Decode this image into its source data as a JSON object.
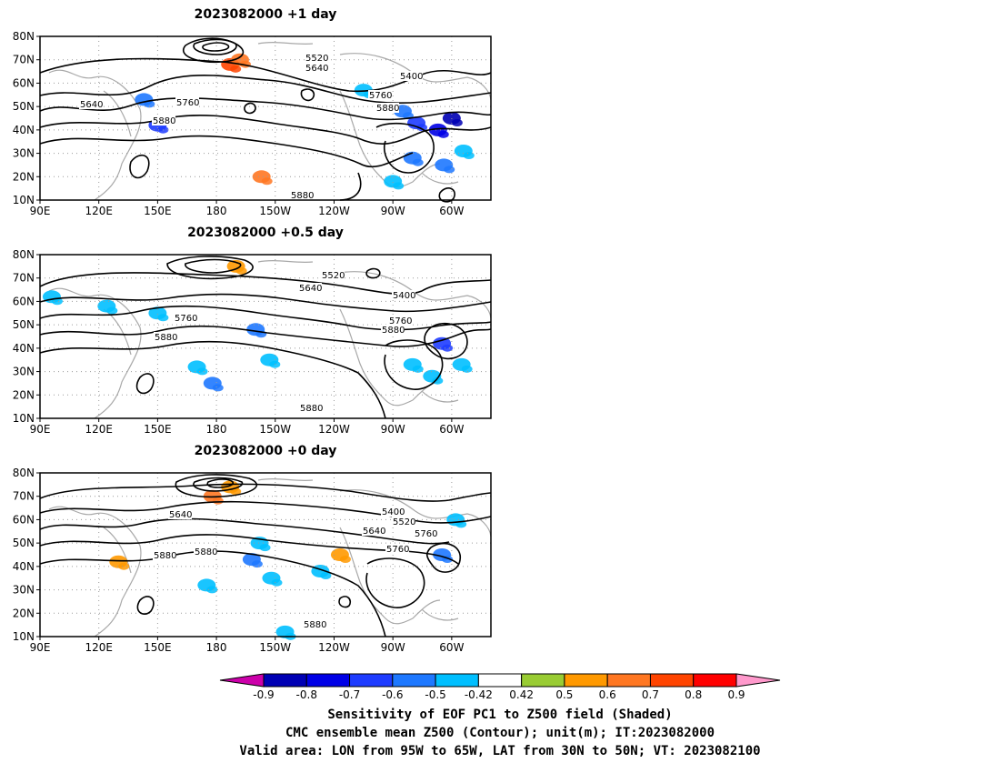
{
  "panels": [
    {
      "title": "2023082000  +1 day",
      "contour_labels": [
        "5520",
        "5640",
        "5400",
        "5640",
        "5760",
        "5760",
        "5880",
        "5880",
        "5880"
      ],
      "shading": [
        {
          "lon": 187,
          "lat": 68,
          "value": 0.7
        },
        {
          "lon": 192,
          "lat": 70,
          "value": 0.6
        },
        {
          "lon": 143,
          "lat": 53,
          "value": -0.6
        },
        {
          "lon": 150,
          "lat": 42,
          "value": -0.7
        },
        {
          "lon": 203,
          "lat": 20,
          "value": 0.6
        },
        {
          "lon": 275,
          "lat": 48,
          "value": -0.6
        },
        {
          "lon": 282,
          "lat": 43,
          "value": -0.7
        },
        {
          "lon": 293,
          "lat": 40,
          "value": -0.8
        },
        {
          "lon": 300,
          "lat": 45,
          "value": -0.9
        },
        {
          "lon": 280,
          "lat": 28,
          "value": -0.6
        },
        {
          "lon": 296,
          "lat": 25,
          "value": -0.6
        },
        {
          "lon": 306,
          "lat": 31,
          "value": -0.5
        },
        {
          "lon": 255,
          "lat": 57,
          "value": -0.5
        },
        {
          "lon": 270,
          "lat": 18,
          "value": -0.5
        }
      ]
    },
    {
      "title": "2023082000  +0.5 day",
      "contour_labels": [
        "5520",
        "5640",
        "5400",
        "5760",
        "5760",
        "5880",
        "5880",
        "5880"
      ],
      "shading": [
        {
          "lon": 190,
          "lat": 75,
          "value": 0.5
        },
        {
          "lon": 96,
          "lat": 62,
          "value": -0.5
        },
        {
          "lon": 124,
          "lat": 58,
          "value": -0.5
        },
        {
          "lon": 150,
          "lat": 55,
          "value": -0.5
        },
        {
          "lon": 170,
          "lat": 32,
          "value": -0.5
        },
        {
          "lon": 178,
          "lat": 25,
          "value": -0.6
        },
        {
          "lon": 200,
          "lat": 48,
          "value": -0.6
        },
        {
          "lon": 207,
          "lat": 35,
          "value": -0.5
        },
        {
          "lon": 295,
          "lat": 42,
          "value": -0.7
        },
        {
          "lon": 290,
          "lat": 28,
          "value": -0.5
        },
        {
          "lon": 305,
          "lat": 33,
          "value": -0.5
        },
        {
          "lon": 280,
          "lat": 33,
          "value": -0.5
        }
      ]
    },
    {
      "title": "2023082000  +0  day",
      "contour_labels": [
        "5640",
        "5400",
        "5520",
        "5640",
        "5760",
        "5880",
        "5880",
        "5760",
        "5880"
      ],
      "shading": [
        {
          "lon": 187,
          "lat": 74,
          "value": 0.5
        },
        {
          "lon": 178,
          "lat": 70,
          "value": 0.6
        },
        {
          "lon": 202,
          "lat": 50,
          "value": -0.5
        },
        {
          "lon": 198,
          "lat": 43,
          "value": -0.6
        },
        {
          "lon": 208,
          "lat": 35,
          "value": -0.5
        },
        {
          "lon": 233,
          "lat": 38,
          "value": -0.5
        },
        {
          "lon": 243,
          "lat": 45,
          "value": 0.5
        },
        {
          "lon": 175,
          "lat": 32,
          "value": -0.5
        },
        {
          "lon": 295,
          "lat": 45,
          "value": -0.6
        },
        {
          "lon": 302,
          "lat": 60,
          "value": -0.5
        },
        {
          "lon": 130,
          "lat": 42,
          "value": 0.5
        },
        {
          "lon": 215,
          "lat": 12,
          "value": -0.5
        }
      ]
    }
  ],
  "map": {
    "lon_range": [
      90,
      320
    ],
    "lat_range": [
      10,
      80
    ],
    "lon_ticks": [
      "90E",
      "120E",
      "150E",
      "180",
      "150W",
      "120W",
      "90W",
      "60W"
    ],
    "lat_ticks": [
      "80N",
      "70N",
      "60N",
      "50N",
      "40N",
      "30N",
      "20N",
      "10N"
    ]
  },
  "colorbar": {
    "ticks": [
      "-0.9",
      "-0.8",
      "-0.7",
      "-0.6",
      "-0.5",
      "-0.42",
      "0.42",
      "0.5",
      "0.6",
      "0.7",
      "0.8",
      "0.9"
    ],
    "colors": [
      "#cc00aa",
      "#0000b4",
      "#0000e6",
      "#1e3cff",
      "#1e78ff",
      "#00bfff",
      "#ffffff",
      "#99cc33",
      "#ff9900",
      "#ff7722",
      "#ff4400",
      "#ff0000",
      "#ff99cc"
    ]
  },
  "footer": {
    "line1": "Sensitivity of EOF PC1 to Z500 field (Shaded)",
    "line2": "CMC ensemble mean Z500 (Contour); unit(m); IT:2023082000",
    "line3": "Valid area: LON from 95W to 65W, LAT from 30N to 50N; VT: 2023082100"
  }
}
